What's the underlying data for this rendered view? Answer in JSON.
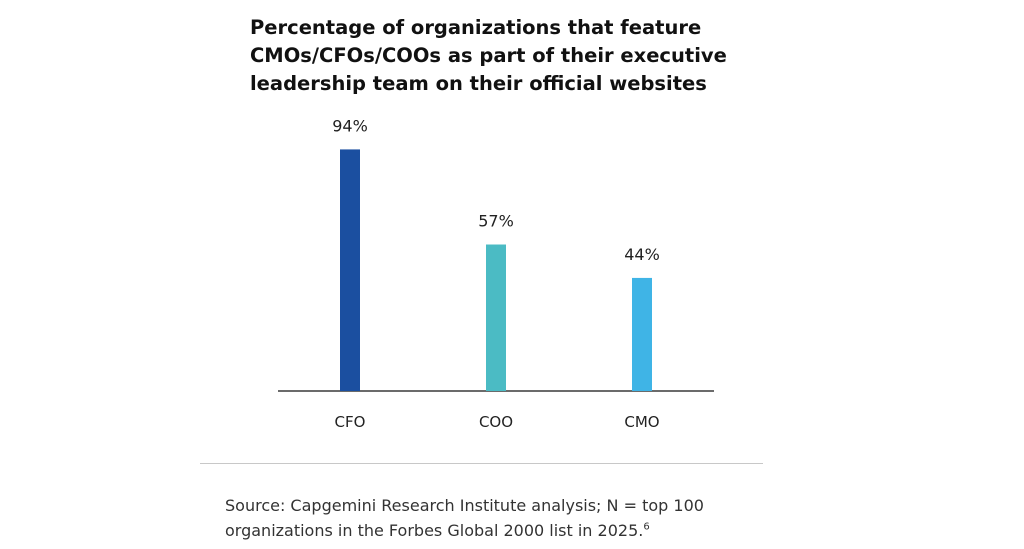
{
  "title_lines": [
    "Percentage of organizations that feature",
    "CMOs/CFOs/COOs as part of their executive",
    "leadership team on their official websites"
  ],
  "chart_data": {
    "type": "bar",
    "title": "Percentage of organizations that feature CMOs/CFOs/COOs as part of their executive leadership team on their official websites",
    "categories": [
      "CFO",
      "COO",
      "CMO"
    ],
    "values": [
      94,
      57,
      44
    ],
    "value_labels": [
      "94%",
      "57%",
      "44%"
    ],
    "colors": [
      "#1b4fa0",
      "#4bbbc4",
      "#3fb4e6"
    ],
    "xlabel": "",
    "ylabel": "",
    "ylim": [
      0,
      100
    ],
    "grid": false,
    "legend": "none"
  },
  "source": {
    "line1": "Source: Capgemini Research Institute analysis; N = top 100",
    "line2": "organizations in the Forbes Global 2000 list in 2025.",
    "footnote": "6"
  }
}
